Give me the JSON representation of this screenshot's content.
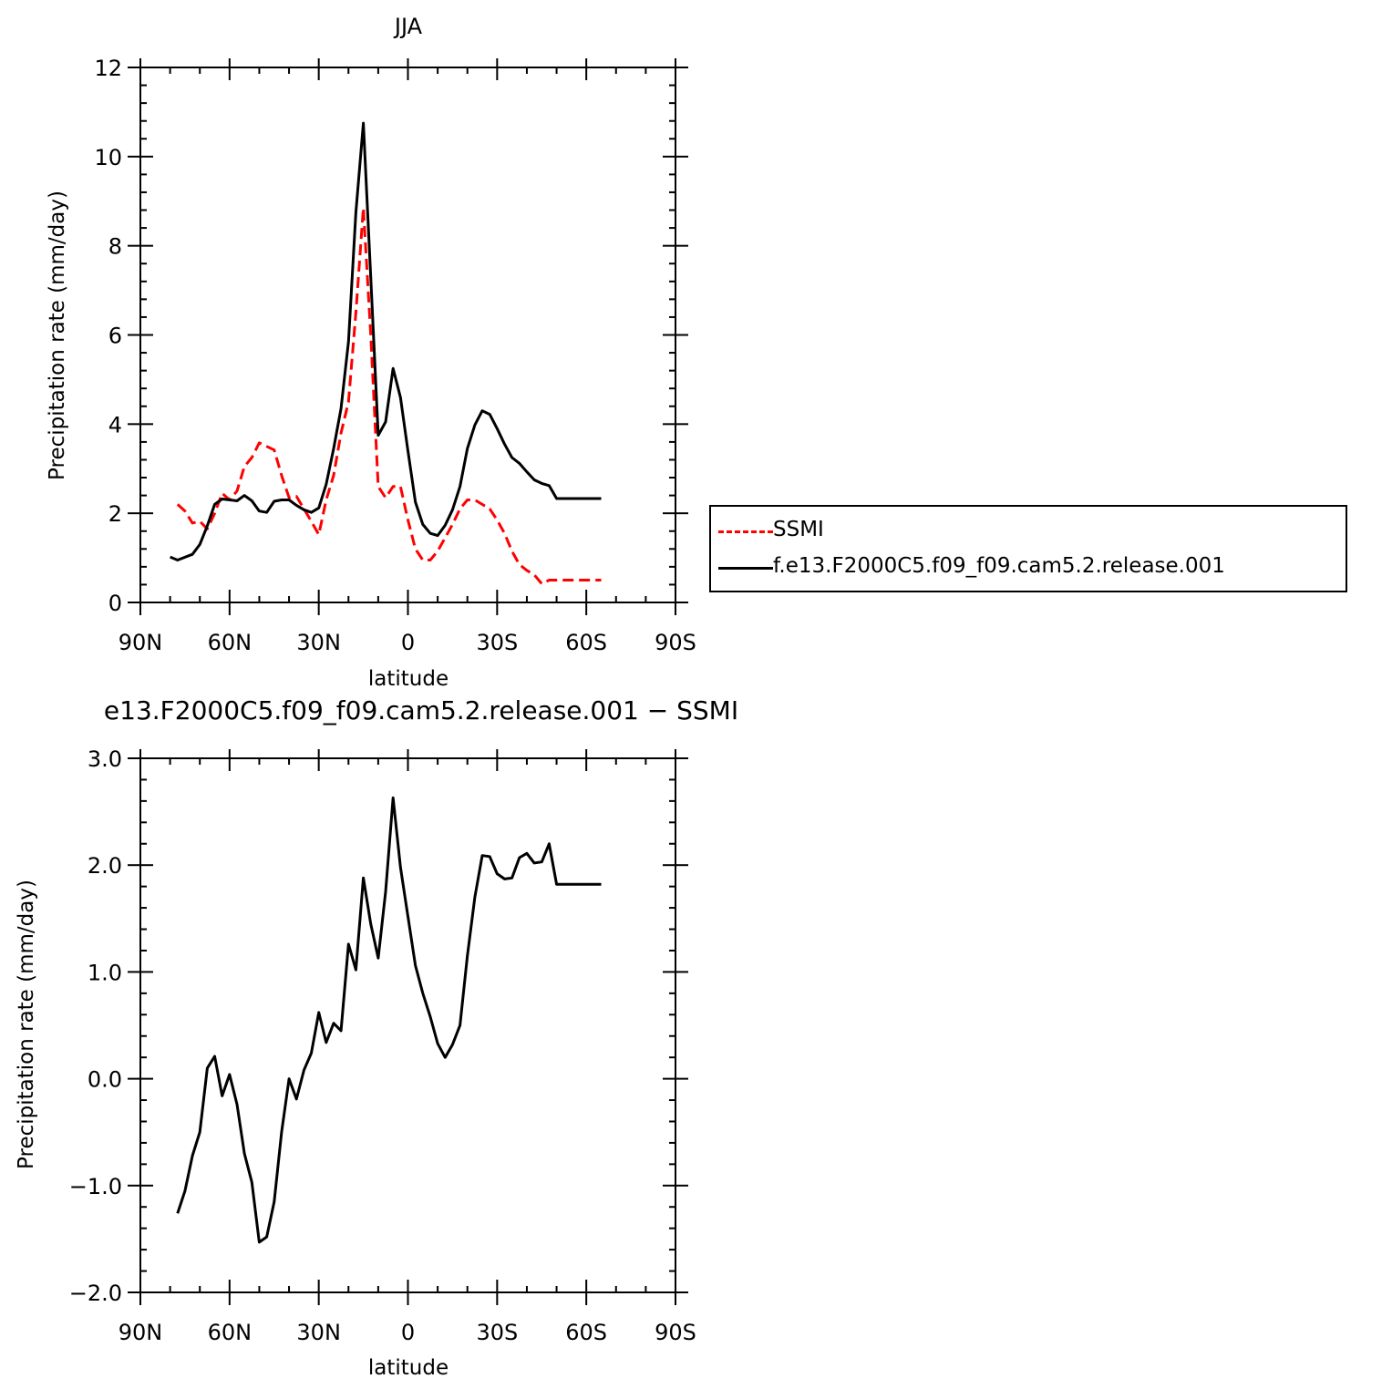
{
  "chart_data": [
    {
      "type": "line",
      "title": "JJA",
      "xlabel": "latitude",
      "ylabel": "Precipitation rate (mm/day)",
      "xticks": [
        "90N",
        "60N",
        "30N",
        "0",
        "30S",
        "60S",
        "90S"
      ],
      "yticks": [
        "0",
        "2",
        "4",
        "6",
        "8",
        "10",
        "12"
      ],
      "xlim": [
        -90,
        90
      ],
      "ylim": [
        0,
        12
      ],
      "legend": "right",
      "series": [
        {
          "name": "SSMI",
          "color": "#ff0000",
          "style": "dashed",
          "x": [
            -77.5,
            -75,
            -72.5,
            -70,
            -67.5,
            -65,
            -62.5,
            -60,
            -57.5,
            -55,
            -52.5,
            -50,
            -47.5,
            -45,
            -42.5,
            -40,
            -37.5,
            -35,
            -32.5,
            -30,
            -27.5,
            -25,
            -22.5,
            -20,
            -17.5,
            -15,
            -12.5,
            -10,
            -7.5,
            -5,
            -2.5,
            0,
            2.5,
            5,
            7.5,
            10,
            12.5,
            15,
            17.5,
            20,
            22.5,
            25,
            27.5,
            30,
            32.5,
            35,
            37.5,
            40,
            42.5,
            45,
            47.5,
            50,
            52.5,
            55,
            57.5,
            60,
            62.5,
            65
          ],
          "y": [
            2.2,
            2.05,
            1.78,
            1.82,
            1.65,
            2.0,
            2.45,
            2.3,
            2.5,
            3.05,
            3.25,
            3.58,
            3.5,
            3.42,
            2.85,
            2.35,
            2.38,
            2.1,
            1.82,
            1.52,
            2.3,
            2.85,
            3.8,
            4.5,
            6.5,
            8.85,
            6.0,
            2.6,
            2.35,
            2.6,
            2.6,
            1.85,
            1.2,
            0.95,
            0.95,
            1.15,
            1.45,
            1.75,
            2.1,
            2.3,
            2.3,
            2.2,
            2.1,
            1.85,
            1.55,
            1.15,
            0.85,
            0.72,
            0.62,
            0.42,
            0.5,
            0.5,
            0.5,
            0.5,
            0.5,
            0.5,
            0.5,
            0.5
          ]
        },
        {
          "name": "f.e13.F2000C5.f09_f09.cam5.2.release.001",
          "color": "#000000",
          "style": "solid",
          "x": [
            -80,
            -77.5,
            -72.5,
            -70,
            -67.5,
            -65,
            -62.5,
            -60,
            -57.5,
            -55,
            -52.5,
            -50,
            -47.5,
            -45,
            -42.5,
            -40,
            -37.5,
            -35,
            -32.5,
            -30,
            -27.5,
            -25,
            -22.5,
            -20,
            -17.5,
            -15,
            -12.5,
            -10,
            -7.5,
            -5,
            -2.5,
            0,
            2.5,
            5,
            7.5,
            10,
            12.5,
            15,
            17.5,
            20,
            22.5,
            25,
            27.5,
            30,
            32.5,
            35,
            37.5,
            40,
            42.5,
            45,
            47.5,
            50,
            52.5,
            55,
            57.5,
            60,
            62.5,
            65
          ],
          "y": [
            1.02,
            0.95,
            1.08,
            1.3,
            1.72,
            2.2,
            2.32,
            2.3,
            2.28,
            2.4,
            2.28,
            2.05,
            2.02,
            2.27,
            2.3,
            2.3,
            2.18,
            2.08,
            2.02,
            2.12,
            2.65,
            3.45,
            4.35,
            5.85,
            8.75,
            10.75,
            7.3,
            3.75,
            4.05,
            5.25,
            4.6,
            3.4,
            2.25,
            1.75,
            1.55,
            1.5,
            1.73,
            2.08,
            2.6,
            3.45,
            3.98,
            4.3,
            4.22,
            3.9,
            3.55,
            3.25,
            3.12,
            2.93,
            2.75,
            2.67,
            2.62,
            2.33,
            2.33,
            2.33,
            2.33,
            2.33,
            2.33,
            2.33
          ]
        }
      ]
    },
    {
      "type": "line",
      "title": "e13.F2000C5.f09_f09.cam5.2.release.001 − SSMI",
      "xlabel": "latitude",
      "ylabel": "Precipitation rate (mm/day)",
      "xticks": [
        "90N",
        "60N",
        "30N",
        "0",
        "30S",
        "60S",
        "90S"
      ],
      "yticks": [
        "−2.0",
        "−1.0",
        "0.0",
        "1.0",
        "2.0",
        "3.0"
      ],
      "xlim": [
        -90,
        90
      ],
      "ylim": [
        -2,
        3
      ],
      "series": [
        {
          "color": "#000000",
          "style": "solid",
          "x": [
            -77.5,
            -75,
            -72.5,
            -70,
            -67.5,
            -65,
            -62.5,
            -60,
            -57.5,
            -55,
            -52.5,
            -50,
            -47.5,
            -45,
            -42.5,
            -40,
            -37.5,
            -35,
            -32.5,
            -30,
            -27.5,
            -25,
            -22.5,
            -20,
            -17.5,
            -15,
            -12.5,
            -10,
            -7.5,
            -5,
            -2.5,
            0,
            2.5,
            5,
            7.5,
            10,
            12.5,
            15,
            17.5,
            20,
            22.5,
            25,
            27.5,
            30,
            32.5,
            35,
            37.5,
            40,
            42.5,
            45,
            47.5,
            50,
            52.5,
            55,
            57.5,
            60,
            62.5,
            65
          ],
          "y": [
            -1.26,
            -1.05,
            -0.72,
            -0.5,
            0.1,
            0.21,
            -0.16,
            0.04,
            -0.24,
            -0.7,
            -0.97,
            -1.53,
            -1.48,
            -1.15,
            -0.5,
            0.0,
            -0.19,
            0.08,
            0.24,
            0.62,
            0.34,
            0.52,
            0.45,
            1.26,
            1.02,
            1.88,
            1.45,
            1.13,
            1.75,
            2.63,
            1.98,
            1.52,
            1.06,
            0.8,
            0.58,
            0.33,
            0.2,
            0.32,
            0.5,
            1.15,
            1.7,
            2.09,
            2.08,
            1.92,
            1.87,
            1.88,
            2.07,
            2.11,
            2.02,
            2.03,
            2.2,
            1.82,
            1.82,
            1.82,
            1.82,
            1.82,
            1.82,
            1.82
          ]
        }
      ]
    }
  ]
}
